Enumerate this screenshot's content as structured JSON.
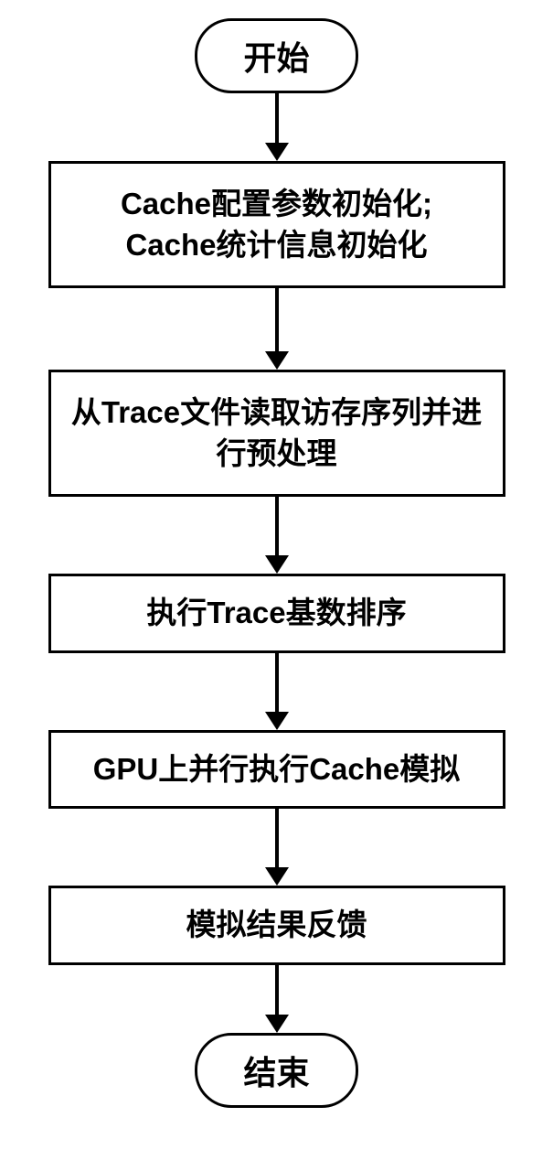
{
  "flowchart": {
    "background_color": "#ffffff",
    "border_color": "#000000",
    "border_width": 3,
    "font_weight": "bold",
    "terminator": {
      "start": "开始",
      "end": "结束",
      "border_radius": 40,
      "font_size": 36
    },
    "steps": [
      {
        "text_line1": "Cache配置参数初始化;",
        "text_line2": "Cache统计信息初始化"
      },
      {
        "text_line1": "从Trace文件读取访存序列并进",
        "text_line2": "行预处理"
      },
      {
        "text_line1": "执行Trace基数排序"
      },
      {
        "text_line1": "GPU上并行执行Cache模拟"
      },
      {
        "text_line1": "模拟结果反馈"
      }
    ],
    "arrow": {
      "color": "#000000",
      "line_width": 4,
      "head_width": 26,
      "head_height": 20,
      "lengths": [
        55,
        70,
        65,
        65,
        65,
        55
      ]
    }
  }
}
